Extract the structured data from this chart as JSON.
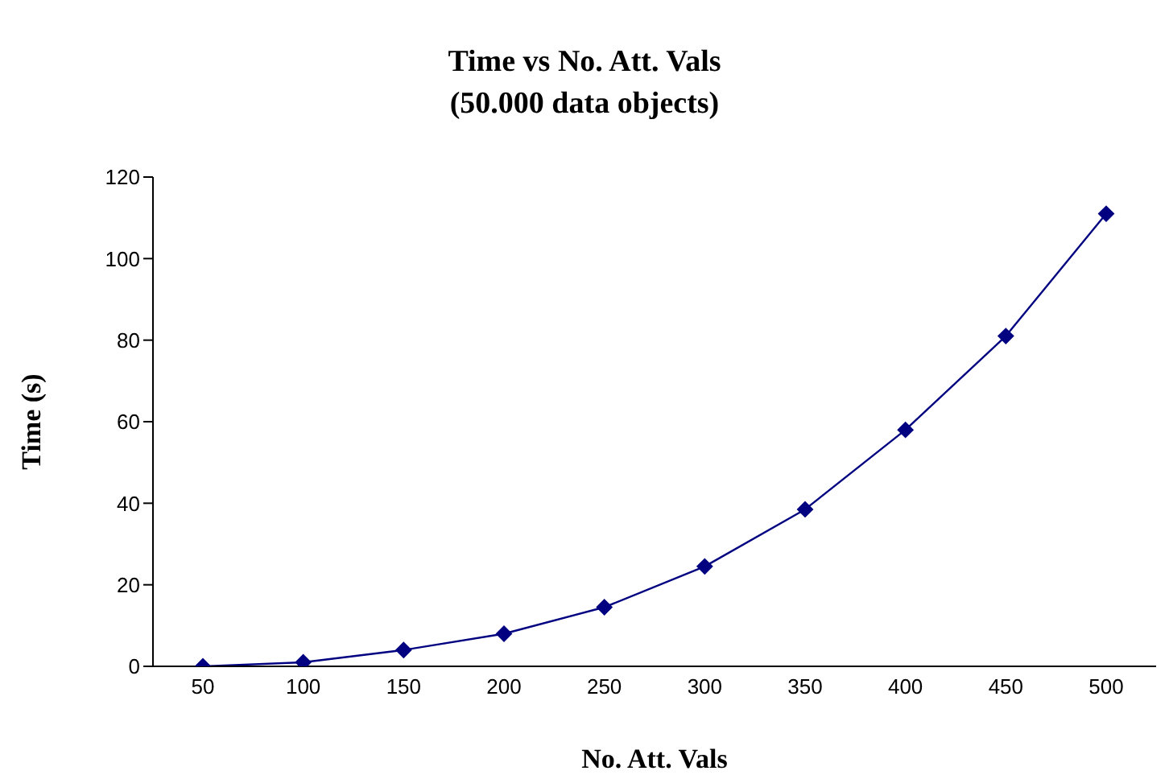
{
  "chart_data": {
    "type": "line",
    "title": "Time vs No. Att. Vals",
    "subtitle": "(50.000 data objects)",
    "xlabel": "No. Att. Vals",
    "ylabel": "Time (s)",
    "categories": [
      "50",
      "100",
      "150",
      "200",
      "250",
      "300",
      "350",
      "400",
      "450",
      "500"
    ],
    "series": [
      {
        "color": "#000080",
        "values": [
          0,
          1,
          4,
          8,
          14.5,
          24.5,
          38.5,
          58,
          81,
          111
        ]
      }
    ],
    "ylim": [
      0,
      120
    ],
    "yticks": [
      0,
      20,
      40,
      60,
      80,
      100,
      120
    ],
    "grid": false,
    "legend": false,
    "marker": "diamond",
    "line_style": "solid"
  }
}
